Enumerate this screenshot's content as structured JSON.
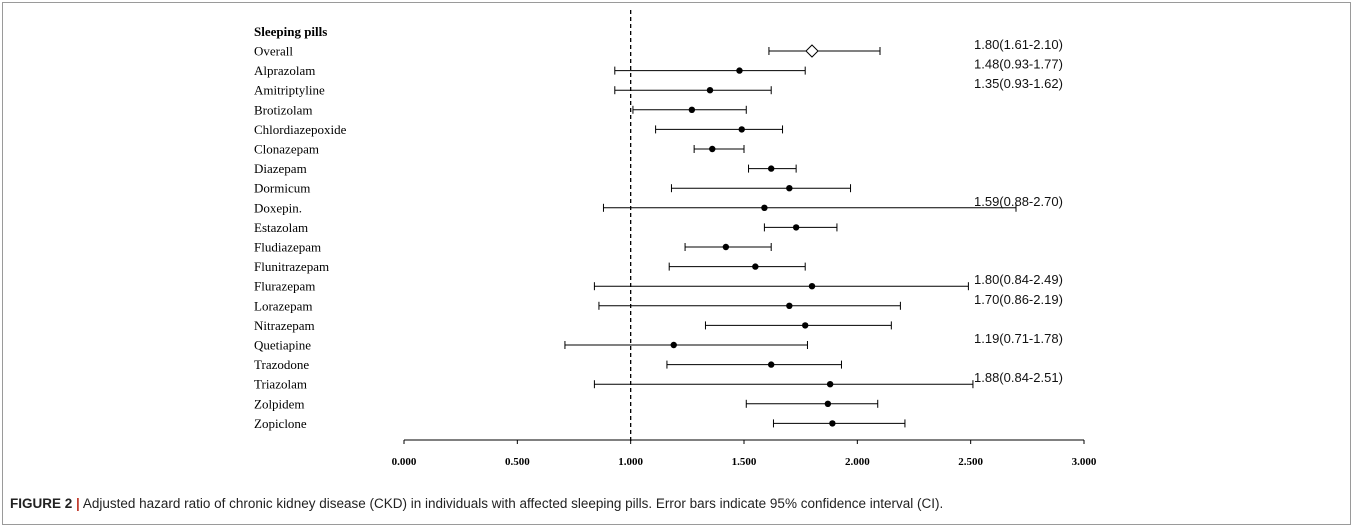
{
  "chart_data": {
    "type": "forest",
    "header": "Sleeping pills",
    "reference_line": 1.0,
    "xlim": [
      0,
      3
    ],
    "x_ticks": [
      "0.000",
      "0.500",
      "1.000",
      "1.500",
      "2.000",
      "2.500",
      "3.000"
    ],
    "rows": [
      {
        "label": "Overall",
        "est": 1.8,
        "lo": 1.61,
        "hi": 2.1,
        "marker": "diamond",
        "annotation": "1.80(1.61-2.10)"
      },
      {
        "label": "Alprazolam",
        "est": 1.48,
        "lo": 0.93,
        "hi": 1.77,
        "annotation": "1.48(0.93-1.77)"
      },
      {
        "label": "Amitriptyline",
        "est": 1.35,
        "lo": 0.93,
        "hi": 1.62,
        "annotation": "1.35(0.93-1.62)"
      },
      {
        "label": "Brotizolam",
        "est": 1.27,
        "lo": 1.01,
        "hi": 1.51
      },
      {
        "label": "Chlordiazepoxide",
        "est": 1.49,
        "lo": 1.11,
        "hi": 1.67
      },
      {
        "label": "Clonazepam",
        "est": 1.36,
        "lo": 1.28,
        "hi": 1.5
      },
      {
        "label": "Diazepam",
        "est": 1.62,
        "lo": 1.52,
        "hi": 1.73
      },
      {
        "label": "Dormicum",
        "est": 1.7,
        "lo": 1.18,
        "hi": 1.97
      },
      {
        "label": "Doxepin.",
        "est": 1.59,
        "lo": 0.88,
        "hi": 2.7,
        "annotation": "1.59(0.88-2.70)"
      },
      {
        "label": "Estazolam",
        "est": 1.73,
        "lo": 1.59,
        "hi": 1.91
      },
      {
        "label": "Fludiazepam",
        "est": 1.42,
        "lo": 1.24,
        "hi": 1.62
      },
      {
        "label": "Flunitrazepam",
        "est": 1.55,
        "lo": 1.17,
        "hi": 1.77
      },
      {
        "label": "Flurazepam",
        "est": 1.8,
        "lo": 0.84,
        "hi": 2.49,
        "annotation": "1.80(0.84-2.49)"
      },
      {
        "label": "Lorazepam",
        "est": 1.7,
        "lo": 0.86,
        "hi": 2.19,
        "annotation": "1.70(0.86-2.19)"
      },
      {
        "label": "Nitrazepam",
        "est": 1.77,
        "lo": 1.33,
        "hi": 2.15
      },
      {
        "label": "Quetiapine",
        "est": 1.19,
        "lo": 0.71,
        "hi": 1.78,
        "annotation": "1.19(0.71-1.78)"
      },
      {
        "label": "Trazodone",
        "est": 1.62,
        "lo": 1.16,
        "hi": 1.93
      },
      {
        "label": "Triazolam",
        "est": 1.88,
        "lo": 0.84,
        "hi": 2.51,
        "annotation": "1.88(0.84-2.51)"
      },
      {
        "label": "Zolpidem",
        "est": 1.87,
        "lo": 1.51,
        "hi": 2.09
      },
      {
        "label": "Zopiclone",
        "est": 1.89,
        "lo": 1.63,
        "hi": 2.21
      }
    ]
  },
  "caption": {
    "label": "FIGURE 2",
    "separator": "|",
    "text": "Adjusted hazard ratio of chronic kidney disease (CKD) in individuals with affected sleeping pills. Error bars indicate 95% confidence interval (CI)."
  }
}
